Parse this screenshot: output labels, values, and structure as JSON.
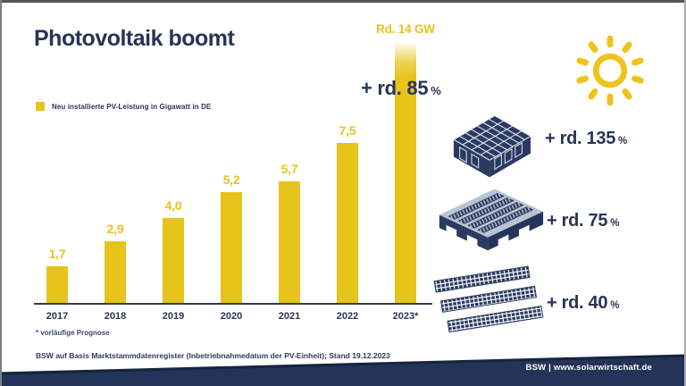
{
  "title": "Photovoltaik boomt",
  "legend": {
    "label": "Neu installierte PV-Leistung in Gigawatt in DE"
  },
  "chart_data": {
    "type": "bar",
    "series_name": "Neu installierte PV-Leistung in Gigawatt in DE",
    "categories": [
      "2017",
      "2018",
      "2019",
      "2020",
      "2021",
      "2022",
      "2023*"
    ],
    "values": [
      1.7,
      2.9,
      4.0,
      5.2,
      5.7,
      7.5,
      14.0
    ],
    "value_labels": [
      "1,7",
      "2,9",
      "4,0",
      "5,2",
      "5,7",
      "7,5",
      "Rd. 14 GW"
    ],
    "unit": "GW",
    "ylim": [
      0,
      14
    ],
    "grid": false,
    "bar_color": "#E6C41A",
    "last_bar_faded": true
  },
  "annotations": {
    "total_growth": {
      "label": "+ rd. 85",
      "unit": "%"
    }
  },
  "growth_items": [
    {
      "icon": "house-pv-icon",
      "label": "+ rd. 135",
      "unit": "%"
    },
    {
      "icon": "commercial-roof-pv-icon",
      "label": "+ rd. 75",
      "unit": "%"
    },
    {
      "icon": "ground-mount-pv-icon",
      "label": "+ rd. 40",
      "unit": "%"
    }
  ],
  "footnotes": {
    "asterisk": "* vorläufige Prognose",
    "source": "BSW auf Basis Marktstammdatenregister (Inbetriebnahmedatum der PV-Einheit); Stand 19.12.2023"
  },
  "footer": {
    "brand": "BSW | www.solarwirtschaft.de"
  },
  "colors": {
    "yellow": "#E6C41A",
    "navy": "#293357",
    "footer_navy": "#243458"
  }
}
